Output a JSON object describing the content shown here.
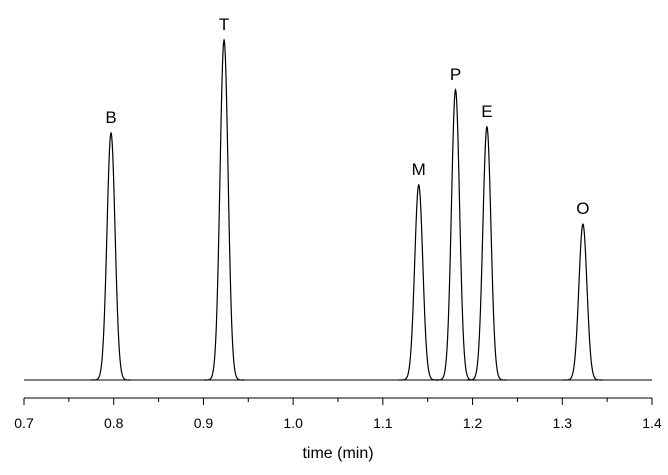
{
  "chart_data": {
    "type": "chromatogram",
    "x_label": "time (min)",
    "xlim": [
      0.7,
      1.4
    ],
    "xticks": [
      0.7,
      0.8,
      0.9,
      {
        "value": 1,
        "label": "1.0"
      },
      1.1,
      1.2,
      1.3,
      1.4
    ],
    "ylim": [
      0,
      100
    ],
    "color": "#000000",
    "peaks": [
      {
        "label": "B",
        "x": 0.797,
        "height": 68.6
      },
      {
        "label": "T",
        "x": 0.923,
        "height": 94.4
      },
      {
        "label": "M",
        "x": 1.14,
        "height": 54.2
      },
      {
        "label": "P",
        "x": 1.181,
        "height": 80.6
      },
      {
        "label": "E",
        "x": 1.216,
        "height": 70.3
      },
      {
        "label": "O",
        "x": 1.323,
        "height": 43.3
      }
    ]
  }
}
